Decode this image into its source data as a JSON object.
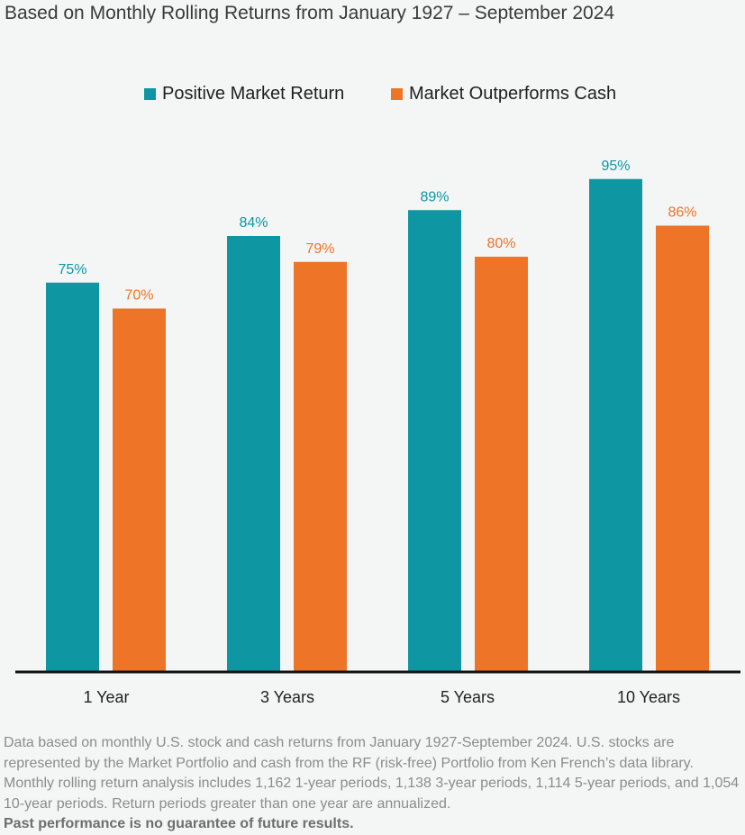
{
  "subtitle": "Based on Monthly Rolling Returns from January 1927 – September 2024",
  "chart_data": {
    "type": "bar",
    "categories": [
      "1 Year",
      "3 Years",
      "5 Years",
      "10 Years"
    ],
    "series": [
      {
        "name": "Positive Market Return",
        "values": [
          75,
          84,
          89,
          95
        ],
        "labels": [
          "75%",
          "84%",
          "89%",
          "95%"
        ],
        "color": "#0e97a3"
      },
      {
        "name": "Market Outperforms Cash",
        "values": [
          70,
          79,
          80,
          86
        ],
        "labels": [
          "70%",
          "79%",
          "80%",
          "86%"
        ],
        "color": "#ee7428"
      }
    ],
    "ylim": [
      0,
      100
    ],
    "grid": false,
    "legend_position": "top-center"
  },
  "footnote": {
    "text": "Data based on monthly U.S. stock and cash returns from January 1927-September 2024. U.S. stocks are represented by the Market Portfolio and cash from the RF (risk-free) Portfolio from Ken French’s data library. Monthly rolling return analysis includes 1,162 1-year periods, 1,138 3-year periods, 1,114 5-year periods, and 1,054 10-year periods. Return periods greater than one year are annualized.",
    "disclaimer": "Past performance is no guarantee of future results."
  }
}
